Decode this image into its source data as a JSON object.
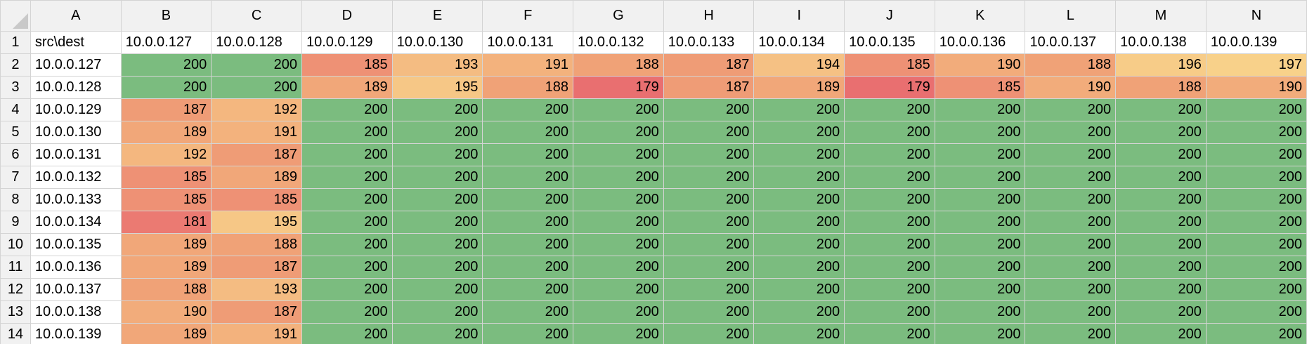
{
  "columns": [
    "A",
    "B",
    "C",
    "D",
    "E",
    "F",
    "G",
    "H",
    "I",
    "J",
    "K",
    "L",
    "M",
    "N"
  ],
  "rows": [
    {
      "num": "1",
      "cells": [
        "src\\dest",
        "10.0.0.127",
        "10.0.0.128",
        "10.0.0.129",
        "10.0.0.130",
        "10.0.0.131",
        "10.0.0.132",
        "10.0.0.133",
        "10.0.0.134",
        "10.0.0.135",
        "10.0.0.136",
        "10.0.0.137",
        "10.0.0.138",
        "10.0.0.139"
      ]
    },
    {
      "num": "2",
      "cells": [
        "10.0.0.127",
        "200",
        "200",
        "185",
        "193",
        "191",
        "188",
        "187",
        "194",
        "185",
        "190",
        "188",
        "196",
        "197"
      ]
    },
    {
      "num": "3",
      "cells": [
        "10.0.0.128",
        "200",
        "200",
        "189",
        "195",
        "188",
        "179",
        "187",
        "189",
        "179",
        "185",
        "190",
        "188",
        "190"
      ]
    },
    {
      "num": "4",
      "cells": [
        "10.0.0.129",
        "187",
        "192",
        "200",
        "200",
        "200",
        "200",
        "200",
        "200",
        "200",
        "200",
        "200",
        "200",
        "200"
      ]
    },
    {
      "num": "5",
      "cells": [
        "10.0.0.130",
        "189",
        "191",
        "200",
        "200",
        "200",
        "200",
        "200",
        "200",
        "200",
        "200",
        "200",
        "200",
        "200"
      ]
    },
    {
      "num": "6",
      "cells": [
        "10.0.0.131",
        "192",
        "187",
        "200",
        "200",
        "200",
        "200",
        "200",
        "200",
        "200",
        "200",
        "200",
        "200",
        "200"
      ]
    },
    {
      "num": "7",
      "cells": [
        "10.0.0.132",
        "185",
        "189",
        "200",
        "200",
        "200",
        "200",
        "200",
        "200",
        "200",
        "200",
        "200",
        "200",
        "200"
      ]
    },
    {
      "num": "8",
      "cells": [
        "10.0.0.133",
        "185",
        "185",
        "200",
        "200",
        "200",
        "200",
        "200",
        "200",
        "200",
        "200",
        "200",
        "200",
        "200"
      ]
    },
    {
      "num": "9",
      "cells": [
        "10.0.0.134",
        "181",
        "195",
        "200",
        "200",
        "200",
        "200",
        "200",
        "200",
        "200",
        "200",
        "200",
        "200",
        "200"
      ]
    },
    {
      "num": "10",
      "cells": [
        "10.0.0.135",
        "189",
        "188",
        "200",
        "200",
        "200",
        "200",
        "200",
        "200",
        "200",
        "200",
        "200",
        "200",
        "200"
      ]
    },
    {
      "num": "11",
      "cells": [
        "10.0.0.136",
        "189",
        "187",
        "200",
        "200",
        "200",
        "200",
        "200",
        "200",
        "200",
        "200",
        "200",
        "200",
        "200"
      ]
    },
    {
      "num": "12",
      "cells": [
        "10.0.0.137",
        "188",
        "193",
        "200",
        "200",
        "200",
        "200",
        "200",
        "200",
        "200",
        "200",
        "200",
        "200",
        "200"
      ]
    },
    {
      "num": "13",
      "cells": [
        "10.0.0.138",
        "190",
        "187",
        "200",
        "200",
        "200",
        "200",
        "200",
        "200",
        "200",
        "200",
        "200",
        "200",
        "200"
      ]
    },
    {
      "num": "14",
      "cells": [
        "10.0.0.139",
        "189",
        "191",
        "200",
        "200",
        "200",
        "200",
        "200",
        "200",
        "200",
        "200",
        "200",
        "200",
        "200"
      ]
    }
  ],
  "heatmap_colors": {
    "max": "#7bbc7f",
    "high": "#f8d18a",
    "mid": "#f0a277",
    "low": "#e96f70"
  }
}
